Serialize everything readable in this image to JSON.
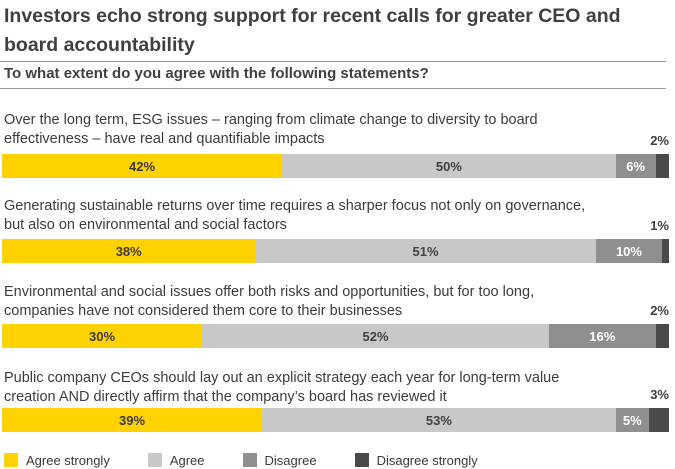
{
  "title": "Investors echo strong support for recent calls for greater CEO and board accountability",
  "subtitle": "To what extent do you agree with the following statements?",
  "chart_data": {
    "type": "bar",
    "stacked": true,
    "orientation": "horizontal",
    "categories": [
      "Over the long term, ESG issues – ranging from climate change to diversity to board effectiveness – have real and quantifiable impacts",
      "Generating sustainable returns over time requires a sharper focus not only on governance, but also on environmental and social factors",
      "Environmental and social issues offer both risks and opportunities, but for too long, companies have not considered them core to their businesses",
      "Public company CEOs should lay out an explicit strategy each year for long-term value creation AND directly affirm that the company’s board has reviewed it"
    ],
    "series": [
      {
        "name": "Agree strongly",
        "color": "#ffd200",
        "values": [
          42,
          38,
          30,
          39
        ]
      },
      {
        "name": "Agree",
        "color": "#c8c8c8",
        "values": [
          50,
          51,
          52,
          53
        ]
      },
      {
        "name": "Disagree",
        "color": "#8f8f8f",
        "values": [
          6,
          10,
          16,
          5
        ]
      },
      {
        "name": "Disagree strongly",
        "color": "#4a4a4a",
        "values": [
          2,
          1,
          2,
          3
        ]
      }
    ],
    "value_labels": [
      [
        "42%",
        "50%",
        "6%",
        "2%"
      ],
      [
        "38%",
        "51%",
        "10%",
        "1%"
      ],
      [
        "30%",
        "52%",
        "16%",
        "2%"
      ],
      [
        "39%",
        "53%",
        "5%",
        "3%"
      ]
    ],
    "legend_position": "bottom"
  }
}
